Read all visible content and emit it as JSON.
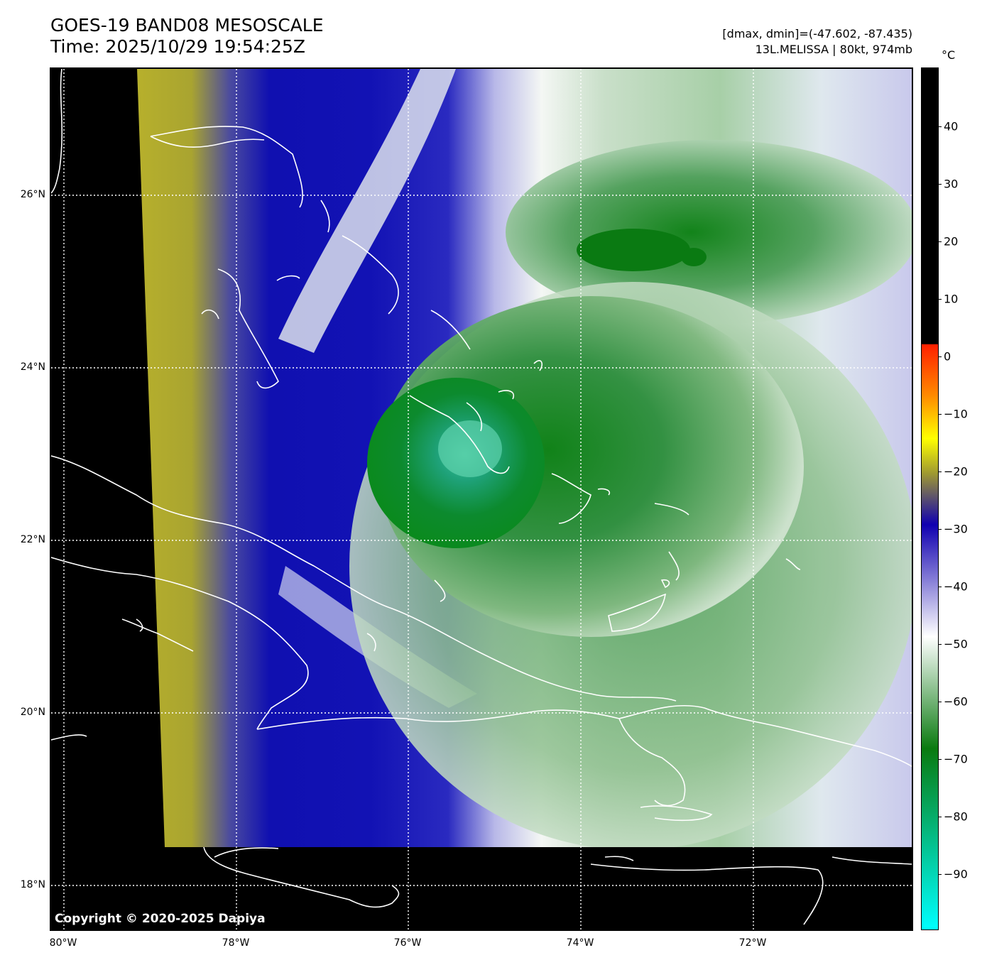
{
  "header": {
    "title": "GOES-19 BAND08 MESOSCALE",
    "time": "Time: 2025/10/29 19:54:25Z",
    "range": "[dmax, dmin]=(-47.602, -87.435)",
    "storm": "13L.MELISSA | 80kt, 974mb"
  },
  "map": {
    "lat_labels": [
      "26°N",
      "24°N",
      "22°N",
      "20°N",
      "18°N"
    ],
    "lon_labels": [
      "80°W",
      "78°W",
      "76°W",
      "74°W",
      "72°W"
    ],
    "copyright": "Copyright © 2020-2025 Dapiya",
    "colors": {
      "background": "#000000",
      "warm_band": "#b7b02c",
      "blue": "#1010b0",
      "lavender": "#b8b8e8",
      "white": "#f4f7f4",
      "green_light": "#a7cfa7",
      "green": "#3f9a4f",
      "green_dark": "#08800c",
      "teal": "#3fc49a",
      "coastline": "#ffffff",
      "grid": "#ffffff"
    }
  },
  "colorbar": {
    "unit": "°C",
    "ticks": [
      "40",
      "30",
      "20",
      "10",
      "0",
      "−10",
      "−20",
      "−30",
      "−40",
      "−50",
      "−60",
      "−70",
      "−80",
      "−90"
    ],
    "colors": {
      "top": "#000000",
      "red": "#ff2000",
      "orange": "#ff8a00",
      "yellow": "#ffff00",
      "olive": "#a09a30",
      "blue": "#1000b0",
      "white": "#ffffff",
      "green": "#0a7a10",
      "cyan": "#00ffff"
    }
  }
}
